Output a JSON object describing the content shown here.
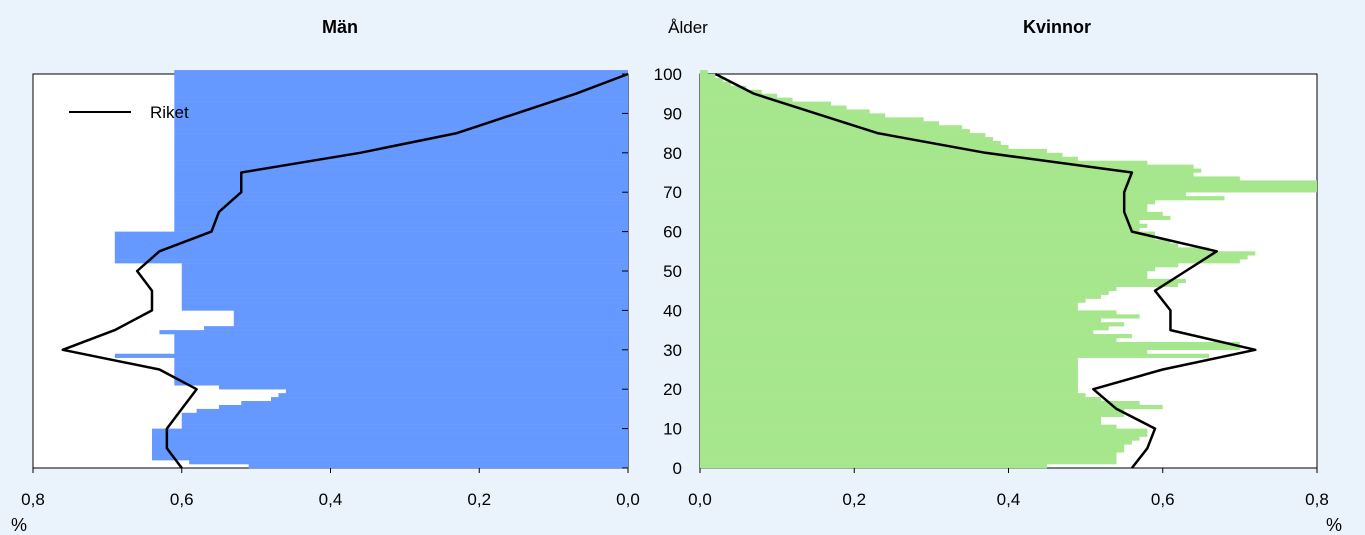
{
  "chart_data": [
    {
      "type": "bar",
      "name": "men",
      "title": "Män",
      "xlabel": "%",
      "ylabel": "Ålder",
      "xlim": [
        0.8,
        0.0
      ],
      "ylim": [
        0,
        100
      ],
      "x_ticks": [
        "0,8",
        "0,6",
        "0,4",
        "0,2",
        "0,0"
      ],
      "y_ticks": [
        "0",
        "10",
        "20",
        "30",
        "40",
        "50",
        "60",
        "70",
        "80",
        "90",
        "100"
      ],
      "bar_color": "#6699ff",
      "line_color": "#000000",
      "series": [
        {
          "name": "Män",
          "type": "bar",
          "values": [
            0.51,
            0.59,
            0.64,
            0.64,
            0.64,
            0.64,
            0.64,
            0.64,
            0.64,
            0.64,
            0.6,
            0.6,
            0.6,
            0.6,
            0.58,
            0.55,
            0.52,
            0.48,
            0.47,
            0.46,
            0.55,
            0.61,
            0.61,
            0.61,
            0.61,
            0.61,
            0.61,
            0.61,
            0.69,
            0.61,
            0.61,
            0.61,
            0.61,
            0.61,
            0.63,
            0.57,
            0.53,
            0.53,
            0.53,
            0.53,
            0.6,
            0.6,
            0.6,
            0.6,
            0.6,
            0.6,
            0.6,
            0.6,
            0.6,
            0.6,
            0.6,
            0.6,
            0.69,
            0.69,
            0.69,
            0.69,
            0.69,
            0.69,
            0.69,
            0.69,
            0.61,
            0.61,
            0.61,
            0.61,
            0.61,
            0.61,
            0.61,
            0.61,
            0.61,
            0.61,
            0.61,
            0.61,
            0.61,
            0.61,
            0.61,
            0.61,
            0.61,
            0.61,
            0.61,
            0.61,
            0.61,
            0.61,
            0.61,
            0.61,
            0.61,
            0.61,
            0.61,
            0.61,
            0.61,
            0.61,
            0.61,
            0.61,
            0.61,
            0.61,
            0.61,
            0.61,
            0.61,
            0.61,
            0.61,
            0.61,
            0.61
          ]
        },
        {
          "name": "Riket",
          "type": "line",
          "ages": [
            0,
            5,
            10,
            15,
            20,
            25,
            30,
            35,
            40,
            45,
            50,
            55,
            60,
            65,
            70,
            75,
            80,
            85,
            90,
            95,
            100
          ],
          "values": [
            0.6,
            0.62,
            0.62,
            0.6,
            0.58,
            0.63,
            0.76,
            0.69,
            0.64,
            0.64,
            0.66,
            0.63,
            0.56,
            0.55,
            0.52,
            0.52,
            0.36,
            0.23,
            0.15,
            0.07,
            0.0
          ]
        }
      ],
      "legend": {
        "entries": [
          "Riket"
        ],
        "placement": "top-left"
      }
    },
    {
      "type": "bar",
      "name": "women",
      "title": "Kvinnor",
      "xlabel": "%",
      "ylabel": "Ålder",
      "xlim": [
        0.0,
        0.8
      ],
      "ylim": [
        0,
        100
      ],
      "x_ticks": [
        "0,0",
        "0,2",
        "0,4",
        "0,6",
        "0,8"
      ],
      "y_ticks": [
        "0",
        "10",
        "20",
        "30",
        "40",
        "50",
        "60",
        "70",
        "80",
        "90",
        "100"
      ],
      "bar_color": "#a6e68c",
      "line_color": "#000000",
      "series": [
        {
          "name": "Kvinnor",
          "type": "bar",
          "values": [
            0.45,
            0.54,
            0.54,
            0.54,
            0.55,
            0.55,
            0.56,
            0.57,
            0.58,
            0.58,
            0.54,
            0.52,
            0.52,
            0.55,
            0.55,
            0.6,
            0.57,
            0.52,
            0.5,
            0.49,
            0.49,
            0.49,
            0.49,
            0.49,
            0.49,
            0.49,
            0.49,
            0.49,
            0.66,
            0.58,
            0.7,
            0.7,
            0.54,
            0.56,
            0.51,
            0.53,
            0.55,
            0.52,
            0.57,
            0.54,
            0.49,
            0.49,
            0.5,
            0.52,
            0.53,
            0.54,
            0.62,
            0.63,
            0.58,
            0.58,
            0.59,
            0.62,
            0.7,
            0.71,
            0.72,
            0.66,
            0.62,
            0.61,
            0.59,
            0.59,
            0.57,
            0.58,
            0.57,
            0.61,
            0.6,
            0.58,
            0.58,
            0.59,
            0.68,
            0.63,
            0.8,
            0.8,
            0.8,
            0.7,
            0.64,
            0.65,
            0.64,
            0.58,
            0.49,
            0.47,
            0.45,
            0.4,
            0.39,
            0.38,
            0.37,
            0.35,
            0.34,
            0.31,
            0.29,
            0.24,
            0.22,
            0.19,
            0.17,
            0.12,
            0.1,
            0.08,
            0.06,
            0.04,
            0.03,
            0.02,
            0.01
          ]
        },
        {
          "name": "Riket",
          "type": "line",
          "ages": [
            0,
            5,
            10,
            15,
            20,
            25,
            30,
            35,
            40,
            45,
            50,
            55,
            60,
            65,
            70,
            75,
            80,
            85,
            90,
            95,
            100
          ],
          "values": [
            0.56,
            0.58,
            0.59,
            0.54,
            0.51,
            0.6,
            0.72,
            0.61,
            0.61,
            0.59,
            0.63,
            0.67,
            0.56,
            0.55,
            0.55,
            0.56,
            0.37,
            0.23,
            0.15,
            0.07,
            0.02
          ]
        }
      ]
    }
  ]
}
